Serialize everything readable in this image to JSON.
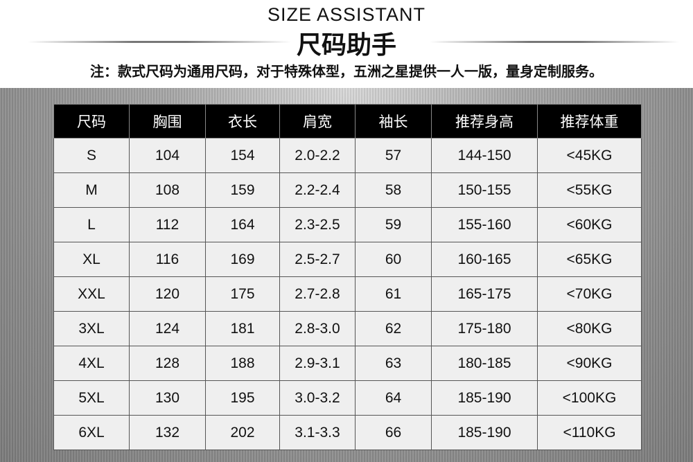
{
  "header": {
    "title_en": "SIZE ASSISTANT",
    "title_cn": "尺码助手",
    "note": "注：款式尺码为通用尺码，对于特殊体型，五洲之星提供一人一版，量身定制服务。"
  },
  "table": {
    "columns": [
      "尺码",
      "胸围",
      "衣长",
      "肩宽",
      "袖长",
      "推荐身高",
      "推荐体重"
    ],
    "rows": [
      [
        "S",
        "104",
        "154",
        "2.0-2.2",
        "57",
        "144-150",
        "<45KG"
      ],
      [
        "M",
        "108",
        "159",
        "2.2-2.4",
        "58",
        "150-155",
        "<55KG"
      ],
      [
        "L",
        "112",
        "164",
        "2.3-2.5",
        "59",
        "155-160",
        "<60KG"
      ],
      [
        "XL",
        "116",
        "169",
        "2.5-2.7",
        "60",
        "160-165",
        "<65KG"
      ],
      [
        "XXL",
        "120",
        "175",
        "2.7-2.8",
        "61",
        "165-175",
        "<70KG"
      ],
      [
        "3XL",
        "124",
        "181",
        "2.8-3.0",
        "62",
        "175-180",
        "<80KG"
      ],
      [
        "4XL",
        "128",
        "188",
        "2.9-3.1",
        "63",
        "180-185",
        "<90KG"
      ],
      [
        "5XL",
        "130",
        "195",
        "3.0-3.2",
        "64",
        "185-190",
        "<100KG"
      ],
      [
        "6XL",
        "132",
        "202",
        "3.1-3.3",
        "66",
        "185-190",
        "<110KG"
      ]
    ]
  },
  "colors": {
    "header_bg": "#000000",
    "cell_bg": "#efefef",
    "background": "#9a9a9a"
  }
}
